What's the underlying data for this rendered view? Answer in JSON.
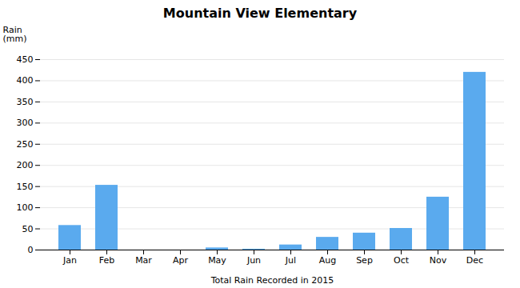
{
  "chart_data": {
    "type": "bar",
    "title": "Mountain View Elementary",
    "xlabel": "Total Rain Recorded in 2015",
    "ylabel": "Rain\n(mm)",
    "categories": [
      "Jan",
      "Feb",
      "Mar",
      "Apr",
      "May",
      "Jun",
      "Jul",
      "Aug",
      "Sep",
      "Oct",
      "Nov",
      "Dec"
    ],
    "values": [
      58,
      153,
      0,
      0,
      5,
      2,
      12,
      30,
      40,
      51,
      125,
      420
    ],
    "color": "#5aaaee",
    "ylim": [
      0,
      450
    ],
    "yticks": [
      0,
      50,
      100,
      150,
      200,
      250,
      300,
      350,
      400,
      450
    ],
    "grid": true
  }
}
